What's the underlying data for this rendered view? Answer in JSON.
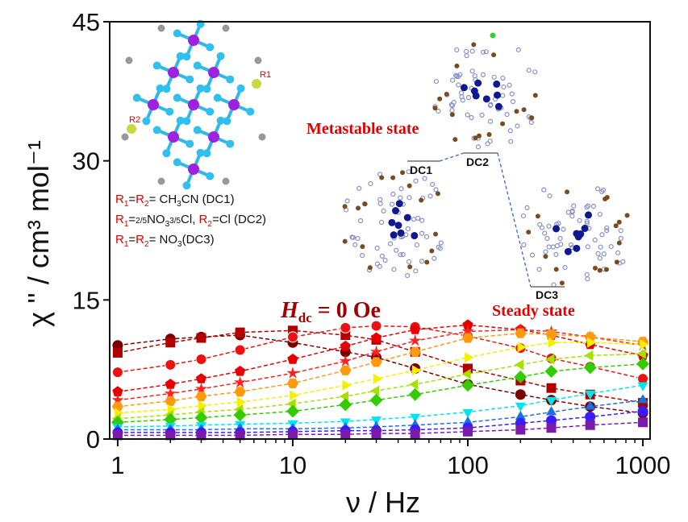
{
  "chart_data": {
    "type": "scatter",
    "xlabel": "ν / Hz",
    "ylabel": "χ '' / cm³ mol⁻¹",
    "xscale": "log",
    "xlim": [
      0.9,
      1100
    ],
    "ylim": [
      0,
      45
    ],
    "xticks": [
      "1",
      "10",
      "100",
      "1000"
    ],
    "yticks": [
      "0",
      "15",
      "30",
      "45"
    ],
    "grid": false,
    "x": [
      1,
      2,
      3,
      5,
      10,
      20,
      30,
      50,
      100,
      200,
      300,
      500,
      1000
    ],
    "series": [
      {
        "color": "#7a0000",
        "marker": "circle",
        "values": [
          10.1,
          10.8,
          11.0,
          11.2,
          10.4,
          9.4,
          8.8,
          7.6,
          5.9,
          4.8,
          4.2,
          3.5,
          2.8
        ]
      },
      {
        "color": "#b00000",
        "marker": "square",
        "values": [
          9.3,
          10.4,
          10.9,
          11.5,
          11.7,
          11.2,
          10.7,
          9.4,
          7.6,
          6.3,
          5.5,
          4.8,
          3.9
        ]
      },
      {
        "color": "#ee1111",
        "marker": "sphere",
        "values": [
          7.2,
          8.0,
          8.6,
          9.6,
          11.0,
          12.0,
          12.2,
          12.1,
          11.1,
          9.8,
          8.7,
          7.8,
          6.5
        ]
      },
      {
        "color": "#e80000",
        "marker": "pentagon",
        "values": [
          5.1,
          5.9,
          6.5,
          7.3,
          8.6,
          10.0,
          10.9,
          11.8,
          12.3,
          11.8,
          11.2,
          10.2,
          9.0
        ]
      },
      {
        "color": "#ff2020",
        "marker": "star",
        "values": [
          4.2,
          4.9,
          5.4,
          6.1,
          7.1,
          8.4,
          9.4,
          10.6,
          11.6,
          11.8,
          11.6,
          11.0,
          10.1
        ]
      },
      {
        "color": "#ff9a10",
        "marker": "hexagon",
        "values": [
          3.5,
          4.1,
          4.6,
          5.1,
          6.0,
          7.4,
          8.3,
          9.4,
          10.9,
          11.4,
          11.3,
          11.0,
          10.5
        ]
      },
      {
        "color": "#f5f000",
        "marker": "triangle-right",
        "values": [
          2.8,
          3.2,
          3.6,
          4.0,
          4.7,
          5.8,
          6.5,
          7.4,
          8.8,
          9.9,
          10.4,
          10.4,
          10.2
        ]
      },
      {
        "color": "#a8e000",
        "marker": "triangle-left",
        "values": [
          2.2,
          2.6,
          2.9,
          3.2,
          3.8,
          4.6,
          5.2,
          5.9,
          7.0,
          8.0,
          8.6,
          9.0,
          9.2
        ]
      },
      {
        "color": "#33cc00",
        "marker": "diamond",
        "values": [
          1.8,
          2.1,
          2.3,
          2.6,
          3.0,
          3.7,
          4.2,
          4.8,
          5.8,
          6.7,
          7.3,
          7.7,
          8.1
        ]
      },
      {
        "color": "#00e5f0",
        "marker": "triangle-down",
        "values": [
          1.3,
          1.4,
          1.5,
          1.6,
          1.7,
          1.9,
          2.1,
          2.4,
          2.9,
          3.6,
          4.2,
          4.9,
          5.8
        ]
      },
      {
        "color": "#1a70e0",
        "marker": "triangle-up",
        "values": [
          1.0,
          1.0,
          1.0,
          1.1,
          1.1,
          1.2,
          1.3,
          1.5,
          1.8,
          2.4,
          2.9,
          3.5,
          4.2
        ]
      },
      {
        "color": "#3a1aff",
        "marker": "circle",
        "values": [
          0.7,
          0.7,
          0.7,
          0.7,
          0.8,
          0.9,
          0.9,
          1.0,
          1.2,
          1.7,
          2.0,
          2.4,
          3.0
        ]
      },
      {
        "color": "#7a1aaa",
        "marker": "square",
        "values": [
          0.4,
          0.4,
          0.4,
          0.4,
          0.5,
          0.5,
          0.6,
          0.6,
          0.8,
          1.0,
          1.2,
          1.5,
          1.8
        ]
      }
    ],
    "annotations": {
      "field": {
        "symbol": "H",
        "subscript": "dc",
        "rest": " = 0 Oe"
      },
      "metastable": "Metastable state",
      "steady": "Steady state",
      "levels": [
        "DC1",
        "DC2",
        "DC3"
      ],
      "legend_lines": [
        {
          "r1": "R",
          "r1sub": "1",
          "eq1": "=",
          "r2": "R",
          "r2sub": "2",
          "rest": "= CH",
          "sub": "3",
          "rest2": "CN (DC1)"
        },
        {
          "r1": "R",
          "r1sub": "1",
          "eq1": "=",
          "frac1": [
            "2",
            "5"
          ],
          "no": "NO",
          "nosub": "3",
          "frac2": [
            "3",
            "5"
          ],
          "cl": "Cl, ",
          "r2": "R",
          "r2sub": "2",
          "rest": "=Cl (DC2)"
        },
        {
          "r1": "R",
          "r1sub": "1",
          "eq1": "=",
          "r2": "R",
          "r2sub": "2",
          "rest": "= NO",
          "sub": "3",
          "rest2": "(DC3)"
        }
      ],
      "structure_label_r1": "R1",
      "structure_label_r2": "R2"
    },
    "colors": {
      "annotation_red": "#e00000",
      "field_darkred": "#a00000",
      "level_line": "#3366cc"
    }
  }
}
